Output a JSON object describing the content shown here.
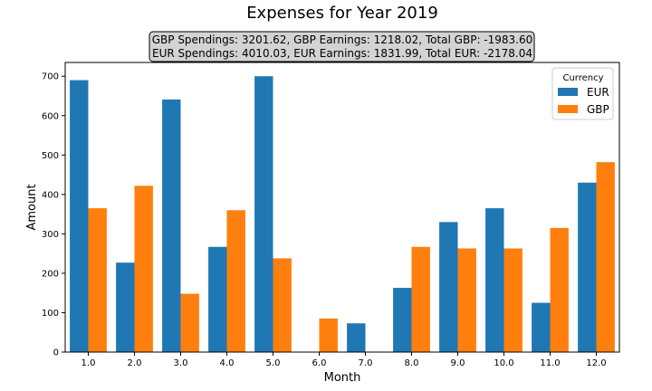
{
  "chart_data": {
    "type": "bar",
    "title": "Expenses for Year 2019",
    "subtitle_lines": [
      "GBP Spendings: 3201.62, GBP Earnings: 1218.02, Total GBP: -1983.60",
      "EUR Spendings: 4010.03, EUR Earnings: 1831.99, Total EUR: -2178.04"
    ],
    "xlabel": "Month",
    "ylabel": "Amount",
    "categories": [
      "1.0",
      "2.0",
      "3.0",
      "4.0",
      "5.0",
      "6.0",
      "7.0",
      "8.0",
      "9.0",
      "10.0",
      "11.0",
      "12.0"
    ],
    "series": [
      {
        "name": "EUR",
        "color": "#1f77b4",
        "values": [
          690,
          227,
          641,
          267,
          700,
          null,
          73,
          163,
          330,
          365,
          125,
          430
        ]
      },
      {
        "name": "GBP",
        "color": "#ff7f0e",
        "values": [
          365,
          422,
          148,
          360,
          238,
          85,
          null,
          267,
          263,
          263,
          315,
          482
        ]
      }
    ],
    "ylim": [
      0,
      735
    ],
    "yticks": [
      0,
      100,
      200,
      300,
      400,
      500,
      600,
      700
    ],
    "legend_title": "Currency",
    "legend_position": "top-right",
    "grid": false
  }
}
